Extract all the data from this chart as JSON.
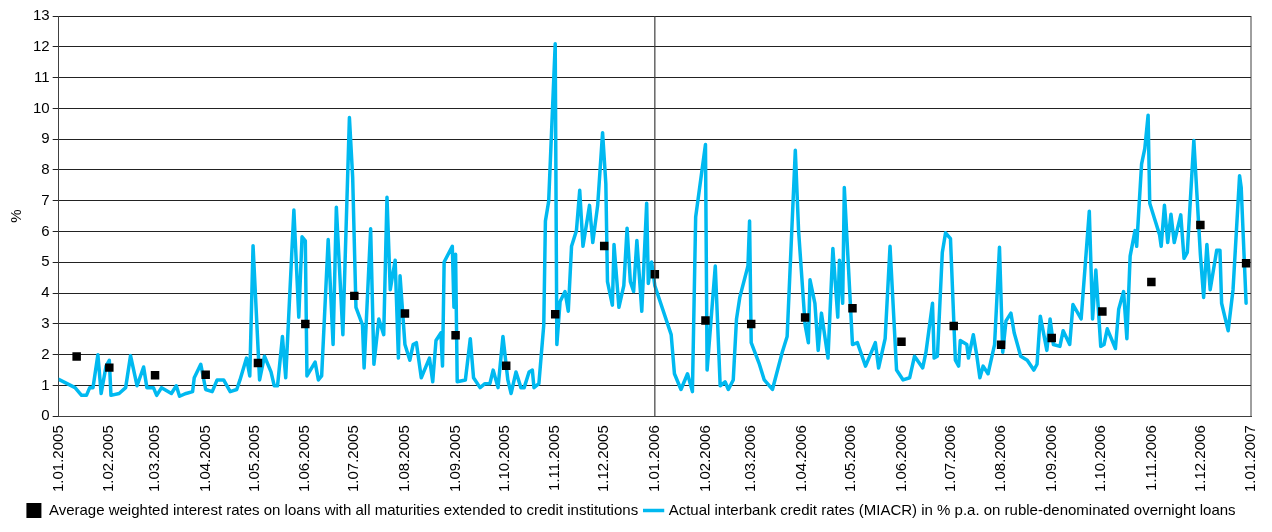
{
  "chart_data": {
    "type": "line",
    "ylabel": "%",
    "xlim": [
      "2005-01-01",
      "2007-01-01"
    ],
    "xticks": [
      {
        "value": "2005-01-01",
        "label": "1.01.2005"
      },
      {
        "value": "2005-02-01",
        "label": "1.02.2005"
      },
      {
        "value": "2005-03-01",
        "label": "1.03.2005"
      },
      {
        "value": "2005-04-01",
        "label": "1.04.2005"
      },
      {
        "value": "2005-05-01",
        "label": "1.05.2005"
      },
      {
        "value": "2005-06-01",
        "label": "1.06.2005"
      },
      {
        "value": "2005-07-01",
        "label": "1.07.2005"
      },
      {
        "value": "2005-08-01",
        "label": "1.08.2005"
      },
      {
        "value": "2005-09-01",
        "label": "1.09.2005"
      },
      {
        "value": "2005-10-01",
        "label": "1.10.2005"
      },
      {
        "value": "2005-11-01",
        "label": "1.11.2005"
      },
      {
        "value": "2005-12-01",
        "label": "1.12.2005"
      },
      {
        "value": "2006-01-01",
        "label": "1.01.2006"
      },
      {
        "value": "2006-02-01",
        "label": "1.02.2006"
      },
      {
        "value": "2006-03-01",
        "label": "1.03.2006"
      },
      {
        "value": "2006-04-01",
        "label": "1.04.2006"
      },
      {
        "value": "2006-05-01",
        "label": "1.05.2006"
      },
      {
        "value": "2006-06-01",
        "label": "1.06.2006"
      },
      {
        "value": "2006-07-01",
        "label": "1.07.2006"
      },
      {
        "value": "2006-08-01",
        "label": "1.08.2006"
      },
      {
        "value": "2006-09-01",
        "label": "1.09.2006"
      },
      {
        "value": "2006-10-01",
        "label": "1.10.2006"
      },
      {
        "value": "2006-11-01",
        "label": "1.11.2006"
      },
      {
        "value": "2006-12-01",
        "label": "1.12.2006"
      },
      {
        "value": "2007-01-01",
        "label": "1.01.2007"
      }
    ],
    "ylim": [
      0,
      13
    ],
    "yticks": [
      0,
      1,
      2,
      3,
      4,
      5,
      6,
      7,
      8,
      9,
      10,
      11,
      12,
      13
    ],
    "grid": "y",
    "legend": "bottom",
    "ref_lines": [
      {
        "axis": "x",
        "value": "2006-01-01",
        "color": "#404040"
      }
    ],
    "series": [
      {
        "name": "Average weighted interest rates on loans with all maturities extended to credit institutions",
        "type": "scatter",
        "marker": "square",
        "color": "#000000",
        "x": [
          "2005-01-12",
          "2005-02-01",
          "2005-03-01",
          "2005-04-01",
          "2005-05-03",
          "2005-06-01",
          "2005-07-01",
          "2005-08-01",
          "2005-09-01",
          "2005-10-02",
          "2005-11-01",
          "2005-12-01",
          "2006-01-01",
          "2006-02-01",
          "2006-03-01",
          "2006-04-03",
          "2006-05-02",
          "2006-06-01",
          "2006-07-03",
          "2006-08-01",
          "2006-09-01",
          "2006-10-02",
          "2006-11-01",
          "2006-12-01",
          "2006-12-29"
        ],
        "values": [
          1.94,
          1.58,
          1.33,
          1.35,
          1.73,
          3.0,
          3.91,
          3.34,
          2.63,
          1.64,
          3.31,
          5.53,
          4.61,
          3.11,
          3.0,
          3.21,
          3.51,
          2.42,
          2.93,
          2.32,
          2.54,
          3.4,
          4.36,
          6.21,
          4.97
        ]
      },
      {
        "name": "Actual interbank credit rates (MIACR) in % p.a. on ruble-denominated overnight loans",
        "marker": "none",
        "color": "#00b9f0",
        "x": [
          "2005-01-01",
          "2005-01-11",
          "2005-01-15",
          "2005-01-18",
          "2005-01-20",
          "2005-01-22",
          "2005-01-25",
          "2005-01-27",
          "2005-01-30",
          "2005-02-01",
          "2005-02-02",
          "2005-02-07",
          "2005-02-11",
          "2005-02-14",
          "2005-02-18",
          "2005-02-22",
          "2005-02-24",
          "2005-02-28",
          "2005-03-02",
          "2005-03-05",
          "2005-03-11",
          "2005-03-14",
          "2005-03-16",
          "2005-03-20",
          "2005-03-24",
          "2005-03-25",
          "2005-03-29",
          "2005-04-01",
          "2005-04-05",
          "2005-04-08",
          "2005-04-12",
          "2005-04-16",
          "2005-04-20",
          "2005-04-22",
          "2005-04-26",
          "2005-04-28",
          "2005-04-30",
          "2005-05-04",
          "2005-05-07",
          "2005-05-11",
          "2005-05-13",
          "2005-05-15",
          "2005-05-18",
          "2005-05-20",
          "2005-05-25",
          "2005-05-28",
          "2005-05-30",
          "2005-06-01",
          "2005-06-02",
          "2005-06-07",
          "2005-06-09",
          "2005-06-11",
          "2005-06-15",
          "2005-06-18",
          "2005-06-20",
          "2005-06-24",
          "2005-06-28",
          "2005-06-30",
          "2005-07-02",
          "2005-07-06",
          "2005-07-07",
          "2005-07-11",
          "2005-07-13",
          "2005-07-16",
          "2005-07-19",
          "2005-07-21",
          "2005-07-23",
          "2005-07-26",
          "2005-07-28",
          "2005-07-29",
          "2005-08-01",
          "2005-08-04",
          "2005-08-06",
          "2005-08-08",
          "2005-08-11",
          "2005-08-16",
          "2005-08-18",
          "2005-08-20",
          "2005-08-23",
          "2005-08-24",
          "2005-08-25",
          "2005-08-30",
          "2005-08-31",
          "2005-09-01",
          "2005-09-02",
          "2005-09-07",
          "2005-09-10",
          "2005-09-12",
          "2005-09-16",
          "2005-09-19",
          "2005-09-22",
          "2005-09-24",
          "2005-09-27",
          "2005-09-30",
          "2005-10-03",
          "2005-10-05",
          "2005-10-08",
          "2005-10-11",
          "2005-10-13",
          "2005-10-16",
          "2005-10-18",
          "2005-10-19",
          "2005-10-22",
          "2005-10-25",
          "2005-10-26",
          "2005-10-28",
          "2005-11-01",
          "2005-11-02",
          "2005-11-04",
          "2005-11-07",
          "2005-11-09",
          "2005-11-11",
          "2005-11-14",
          "2005-11-16",
          "2005-11-18",
          "2005-11-22",
          "2005-11-24",
          "2005-11-27",
          "2005-11-30",
          "2005-12-02",
          "2005-12-03",
          "2005-12-06",
          "2005-12-07",
          "2005-12-10",
          "2005-12-13",
          "2005-12-15",
          "2005-12-17",
          "2005-12-19",
          "2005-12-21",
          "2005-12-24",
          "2005-12-27",
          "2005-12-28",
          "2005-12-30",
          "2006-01-01",
          "2006-01-11",
          "2006-01-13",
          "2006-01-17",
          "2006-01-21",
          "2006-01-24",
          "2006-01-26",
          "2006-02-01",
          "2006-02-02",
          "2006-02-07",
          "2006-02-10",
          "2006-02-13",
          "2006-02-15",
          "2006-02-18",
          "2006-02-20",
          "2006-02-22",
          "2006-02-27",
          "2006-02-28",
          "2006-03-01",
          "2006-03-06",
          "2006-03-09",
          "2006-03-14",
          "2006-03-20",
          "2006-03-23",
          "2006-03-28",
          "2006-03-30",
          "2006-04-03",
          "2006-04-05",
          "2006-04-06",
          "2006-04-09",
          "2006-04-11",
          "2006-04-13",
          "2006-04-17",
          "2006-04-20",
          "2006-04-23",
          "2006-04-24",
          "2006-04-26",
          "2006-04-27",
          "2006-05-02",
          "2006-05-05",
          "2006-05-10",
          "2006-05-16",
          "2006-05-18",
          "2006-05-22",
          "2006-05-25",
          "2006-05-29",
          "2006-06-02",
          "2006-06-06",
          "2006-06-09",
          "2006-06-14",
          "2006-06-16",
          "2006-06-20",
          "2006-06-21",
          "2006-06-23",
          "2006-06-26",
          "2006-06-28",
          "2006-07-01",
          "2006-07-04",
          "2006-07-06",
          "2006-07-07",
          "2006-07-11",
          "2006-07-12",
          "2006-07-15",
          "2006-07-17",
          "2006-07-19",
          "2006-07-21",
          "2006-07-24",
          "2006-07-28",
          "2006-07-31",
          "2006-08-02",
          "2006-08-04",
          "2006-08-07",
          "2006-08-09",
          "2006-08-13",
          "2006-08-17",
          "2006-08-21",
          "2006-08-23",
          "2006-08-25",
          "2006-08-29",
          "2006-08-31",
          "2006-09-02",
          "2006-09-06",
          "2006-09-08",
          "2006-09-12",
          "2006-09-14",
          "2006-09-19",
          "2006-09-24",
          "2006-09-26",
          "2006-09-28",
          "2006-10-01",
          "2006-10-03",
          "2006-10-05",
          "2006-10-10",
          "2006-10-12",
          "2006-10-15",
          "2006-10-17",
          "2006-10-19",
          "2006-10-22",
          "2006-10-23",
          "2006-10-26",
          "2006-10-28",
          "2006-10-30",
          "2006-10-31",
          "2006-11-03",
          "2006-11-06",
          "2006-11-07",
          "2006-11-09",
          "2006-11-11",
          "2006-11-13",
          "2006-11-15",
          "2006-11-19",
          "2006-11-21",
          "2006-11-23",
          "2006-11-27",
          "2006-12-01",
          "2006-12-03",
          "2006-12-05",
          "2006-12-07",
          "2006-12-11",
          "2006-12-13",
          "2006-12-14",
          "2006-12-18",
          "2006-12-21",
          "2006-12-25",
          "2006-12-26",
          "2006-12-29"
        ],
        "values": [
          1.2,
          0.93,
          0.68,
          0.68,
          0.93,
          0.93,
          2.0,
          0.74,
          1.63,
          1.82,
          0.68,
          0.74,
          0.93,
          1.97,
          0.99,
          1.6,
          0.93,
          0.93,
          0.68,
          0.93,
          0.74,
          0.99,
          0.65,
          0.74,
          0.8,
          1.25,
          1.69,
          0.87,
          0.8,
          1.18,
          1.18,
          0.8,
          0.87,
          1.18,
          1.89,
          1.31,
          5.54,
          1.18,
          1.95,
          1.44,
          0.99,
          0.99,
          2.59,
          1.25,
          6.7,
          3.22,
          5.83,
          5.7,
          1.31,
          1.76,
          1.18,
          1.31,
          5.74,
          2.33,
          6.79,
          2.65,
          9.7,
          7.75,
          3.54,
          2.97,
          1.57,
          6.09,
          1.69,
          3.16,
          2.65,
          7.11,
          4.11,
          5.07,
          1.89,
          4.56,
          2.33,
          1.82,
          2.33,
          2.39,
          1.25,
          1.89,
          1.12,
          2.46,
          2.71,
          1.63,
          5.01,
          5.52,
          3.54,
          5.26,
          1.12,
          1.18,
          2.52,
          1.25,
          0.93,
          1.06,
          1.06,
          1.5,
          0.93,
          2.59,
          1.18,
          0.74,
          1.44,
          0.93,
          0.93,
          1.44,
          1.5,
          0.93,
          1.06,
          2.97,
          6.34,
          6.98,
          12.1,
          2.33,
          3.73,
          4.05,
          3.41,
          5.52,
          6.03,
          7.34,
          5.52,
          6.85,
          5.64,
          6.85,
          9.21,
          7.55,
          4.37,
          3.61,
          5.58,
          3.54,
          4.24,
          6.11,
          4.37,
          4.05,
          5.71,
          3.41,
          6.92,
          4.31,
          5.01,
          4.24,
          2.65,
          1.38,
          0.87,
          1.38,
          0.8,
          6.47,
          8.83,
          1.5,
          4.88,
          0.99,
          1.12,
          0.87,
          1.18,
          3.16,
          3.86,
          4.88,
          6.34,
          2.39,
          1.69,
          1.18,
          0.87,
          2.08,
          2.59,
          8.64,
          6.03,
          2.97,
          2.39,
          4.43,
          3.67,
          2.14,
          3.35,
          1.89,
          5.45,
          3.22,
          5.07,
          3.67,
          7.43,
          2.33,
          2.39,
          1.63,
          2.39,
          1.57,
          2.52,
          5.52,
          1.5,
          1.18,
          1.25,
          1.95,
          1.57,
          2.08,
          3.67,
          1.89,
          1.95,
          5.32,
          5.96,
          5.77,
          1.82,
          1.63,
          2.46,
          2.33,
          1.89,
          2.65,
          2.01,
          1.25,
          1.63,
          1.38,
          2.33,
          5.49,
          2.08,
          3.1,
          3.35,
          2.71,
          1.95,
          1.82,
          1.5,
          1.69,
          3.25,
          2.14,
          3.16,
          2.33,
          2.27,
          2.78,
          2.33,
          3.63,
          3.16,
          6.66,
          3.16,
          4.75,
          2.27,
          2.33,
          2.84,
          2.2,
          3.48,
          4.05,
          2.52,
          5.2,
          6.03,
          5.52,
          8.19,
          8.7,
          9.78,
          6.92,
          6.41,
          5.9,
          5.52,
          6.85,
          5.64,
          6.56,
          5.64,
          6.54,
          5.13,
          5.32,
          8.96,
          5.26,
          3.86,
          5.58,
          4.11,
          5.39,
          5.39,
          3.67,
          2.78,
          4.11,
          7.81,
          7.43,
          3.67
        ]
      }
    ]
  }
}
